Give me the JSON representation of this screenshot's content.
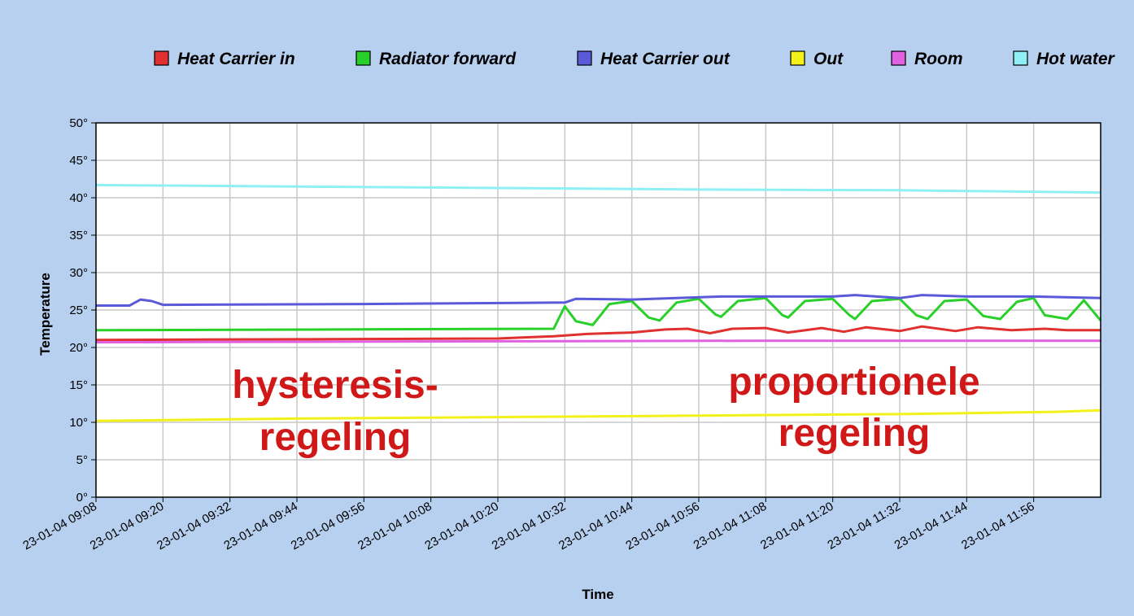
{
  "chart_data": {
    "type": "line",
    "xlabel": "Time",
    "ylabel": "Temperature",
    "ylim": [
      0,
      50
    ],
    "y_ticks": [
      "0°",
      "5°",
      "10°",
      "15°",
      "20°",
      "25°",
      "30°",
      "35°",
      "40°",
      "45°",
      "50°"
    ],
    "x_ticks": [
      "23-01-04 09:08",
      "23-01-04 09:20",
      "23-01-04 09:32",
      "23-01-04 09:44",
      "23-01-04 09:56",
      "23-01-04 10:08",
      "23-01-04 10:20",
      "23-01-04 10:32",
      "23-01-04 10:44",
      "23-01-04 10:56",
      "23-01-04 11:08",
      "23-01-04 11:20",
      "23-01-04 11:32",
      "23-01-04 11:44",
      "23-01-04 11:56"
    ],
    "xlim": [
      "23-01-04 09:08",
      "23-01-04 12:08"
    ],
    "grid": true,
    "legend_position": "top",
    "series": [
      {
        "name": "Heat Carrier in",
        "color": "#e03030",
        "points": [
          [
            "09:08",
            21.0
          ],
          [
            "09:44",
            21.1
          ],
          [
            "10:20",
            21.2
          ],
          [
            "10:30",
            21.5
          ],
          [
            "10:36",
            21.8
          ],
          [
            "10:44",
            22.0
          ],
          [
            "10:50",
            22.4
          ],
          [
            "10:54",
            22.5
          ],
          [
            "10:58",
            21.9
          ],
          [
            "11:02",
            22.5
          ],
          [
            "11:08",
            22.6
          ],
          [
            "11:12",
            22.0
          ],
          [
            "11:18",
            22.6
          ],
          [
            "11:22",
            22.1
          ],
          [
            "11:26",
            22.7
          ],
          [
            "11:32",
            22.2
          ],
          [
            "11:36",
            22.8
          ],
          [
            "11:42",
            22.2
          ],
          [
            "11:46",
            22.7
          ],
          [
            "11:52",
            22.3
          ],
          [
            "11:58",
            22.5
          ],
          [
            "12:02",
            22.3
          ],
          [
            "12:08",
            22.3
          ]
        ]
      },
      {
        "name": "Radiator forward",
        "color": "#2ad02a",
        "points": [
          [
            "09:08",
            22.3
          ],
          [
            "10:30",
            22.5
          ],
          [
            "10:32",
            25.5
          ],
          [
            "10:34",
            23.5
          ],
          [
            "10:37",
            23.0
          ],
          [
            "10:40",
            25.8
          ],
          [
            "10:44",
            26.2
          ],
          [
            "10:47",
            24.0
          ],
          [
            "10:49",
            23.6
          ],
          [
            "10:52",
            26.0
          ],
          [
            "10:56",
            26.5
          ],
          [
            "10:59",
            24.4
          ],
          [
            "11:00",
            24.1
          ],
          [
            "11:03",
            26.2
          ],
          [
            "11:08",
            26.6
          ],
          [
            "11:11",
            24.3
          ],
          [
            "11:12",
            24.0
          ],
          [
            "11:15",
            26.2
          ],
          [
            "11:20",
            26.5
          ],
          [
            "11:23",
            24.3
          ],
          [
            "11:24",
            23.8
          ],
          [
            "11:27",
            26.2
          ],
          [
            "11:32",
            26.5
          ],
          [
            "11:35",
            24.3
          ],
          [
            "11:37",
            23.8
          ],
          [
            "11:40",
            26.2
          ],
          [
            "11:44",
            26.4
          ],
          [
            "11:47",
            24.2
          ],
          [
            "11:50",
            23.8
          ],
          [
            "11:53",
            26.1
          ],
          [
            "11:56",
            26.6
          ],
          [
            "11:58",
            24.3
          ],
          [
            "12:02",
            23.8
          ],
          [
            "12:05",
            26.3
          ],
          [
            "12:08",
            23.6
          ]
        ]
      },
      {
        "name": "Heat Carrier out",
        "color": "#5a5ad8",
        "points": [
          [
            "09:08",
            25.6
          ],
          [
            "09:14",
            25.6
          ],
          [
            "09:16",
            26.4
          ],
          [
            "09:18",
            26.2
          ],
          [
            "09:20",
            25.7
          ],
          [
            "09:56",
            25.8
          ],
          [
            "10:32",
            26.0
          ],
          [
            "10:34",
            26.5
          ],
          [
            "10:44",
            26.4
          ],
          [
            "11:00",
            26.8
          ],
          [
            "11:20",
            26.8
          ],
          [
            "11:24",
            27.0
          ],
          [
            "11:32",
            26.6
          ],
          [
            "11:36",
            27.0
          ],
          [
            "11:44",
            26.8
          ],
          [
            "11:56",
            26.8
          ],
          [
            "12:08",
            26.6
          ]
        ]
      },
      {
        "name": "Out",
        "color": "#f2f21a",
        "points": [
          [
            "09:08",
            10.2
          ],
          [
            "09:44",
            10.5
          ],
          [
            "10:20",
            10.7
          ],
          [
            "10:56",
            10.9
          ],
          [
            "11:32",
            11.1
          ],
          [
            "12:00",
            11.4
          ],
          [
            "12:08",
            11.6
          ]
        ]
      },
      {
        "name": "Room",
        "color": "#e060e0",
        "points": [
          [
            "09:08",
            20.7
          ],
          [
            "10:08",
            20.8
          ],
          [
            "11:08",
            20.9
          ],
          [
            "12:08",
            20.9
          ]
        ]
      },
      {
        "name": "Hot water",
        "color": "#8ef0f4",
        "points": [
          [
            "09:08",
            41.7
          ],
          [
            "09:44",
            41.5
          ],
          [
            "10:20",
            41.3
          ],
          [
            "10:56",
            41.1
          ],
          [
            "11:32",
            41.0
          ],
          [
            "12:08",
            40.7
          ]
        ]
      }
    ],
    "annotations": [
      {
        "lines": [
          "hysteresis-",
          "regeling"
        ]
      },
      {
        "lines": [
          "proportionele",
          "regeling"
        ]
      }
    ]
  }
}
